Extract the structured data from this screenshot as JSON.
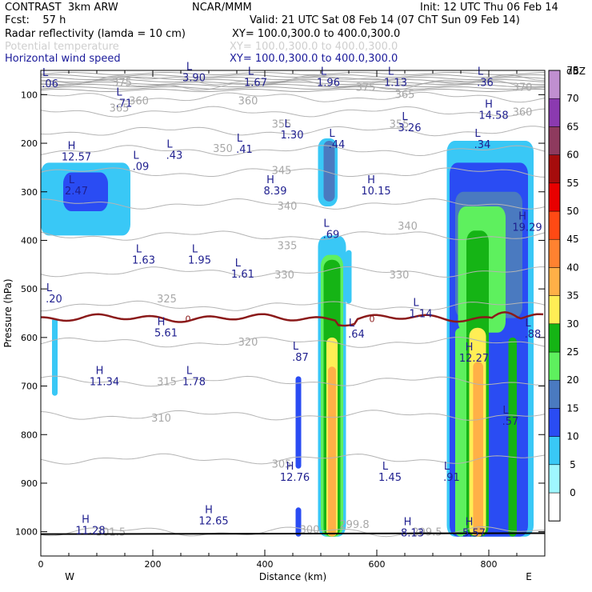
{
  "header": {
    "model": "CONTRAST  3km ARW",
    "org": "NCAR/MMM",
    "init": "Init: 12 UTC Thu 06 Feb 14",
    "fcst": "Fcst:    57 h",
    "valid": "Valid: 21 UTC Sat 08 Feb 14 (07 ChT Sun 09 Feb 14)",
    "field1": "Radar reflectivity (lamda = 10 cm)",
    "field1_xy": "XY= 100.0,300.0 to 400.0,300.0",
    "field2": "Potential temperature",
    "field2_xy": "XY= 100.0,300.0 to 400.0,300.0",
    "field3": "Horizontal wind speed",
    "field3_xy": "XY= 100.0,300.0 to 400.0,300.0"
  },
  "chart_data": {
    "type": "heatmap",
    "xlabel": "Distance (km)",
    "ylabel": "Pressure (hPa)",
    "xlim": [
      0,
      900
    ],
    "ylim": [
      1050,
      50
    ],
    "x_ticks": [
      0,
      200,
      400,
      600,
      800
    ],
    "y_ticks": [
      100,
      200,
      300,
      400,
      500,
      600,
      700,
      800,
      900,
      1000
    ],
    "x_end_labels": {
      "left": "W",
      "right": "E"
    },
    "colorbar": {
      "unit": "dBZ",
      "levels": [
        0,
        5,
        10,
        15,
        20,
        25,
        30,
        35,
        40,
        45,
        50,
        55,
        60,
        65,
        70,
        75
      ],
      "colors": [
        "#ffffff",
        "#9ff7ff",
        "#39c8f6",
        "#2a4cf3",
        "#4a7ac0",
        "#5ef05e",
        "#15b415",
        "#ffee55",
        "#ffb047",
        "#ff8230",
        "#ff4a14",
        "#e80000",
        "#a50c0c",
        "#8e3a5e",
        "#8b3ab0",
        "#c08fd0"
      ]
    },
    "theta_contours": [
      {
        "label": "375",
        "p": 70
      },
      {
        "label": "370",
        "p": 80
      },
      {
        "label": "365",
        "p": 105
      },
      {
        "label": "360",
        "p": 135
      },
      {
        "label": "355",
        "p": 175
      },
      {
        "label": "350",
        "p": 215
      },
      {
        "label": "345",
        "p": 260
      },
      {
        "label": "340",
        "p": 325
      },
      {
        "label": "335",
        "p": 390
      },
      {
        "label": "330",
        "p": 465
      },
      {
        "label": "325",
        "p": 535
      },
      {
        "label": "320",
        "p": 610
      },
      {
        "label": "315",
        "p": 690
      },
      {
        "label": "310",
        "p": 760
      },
      {
        "label": "305",
        "p": 850
      },
      {
        "label": "300",
        "p": 1000
      }
    ],
    "theta_labels": [
      {
        "text": "375",
        "x": 145,
        "p": 82
      },
      {
        "text": "360",
        "p": 120,
        "x": 175
      },
      {
        "text": "365",
        "p": 135,
        "x": 140
      },
      {
        "text": "360",
        "p": 120,
        "x": 370
      },
      {
        "text": "375",
        "p": 92,
        "x": 580
      },
      {
        "text": "365",
        "p": 107,
        "x": 650
      },
      {
        "text": "370",
        "p": 92,
        "x": 860
      },
      {
        "text": "360",
        "p": 143,
        "x": 860
      },
      {
        "text": "355",
        "p": 168,
        "x": 430
      },
      {
        "text": "355",
        "p": 168,
        "x": 640
      },
      {
        "text": "350",
        "p": 218,
        "x": 325
      },
      {
        "text": "345",
        "p": 263,
        "x": 430
      },
      {
        "text": "340",
        "p": 337,
        "x": 440
      },
      {
        "text": "340",
        "p": 378,
        "x": 655
      },
      {
        "text": "335",
        "p": 418,
        "x": 440
      },
      {
        "text": "330",
        "p": 478,
        "x": 435
      },
      {
        "text": "330",
        "p": 478,
        "x": 640
      },
      {
        "text": "325",
        "p": 528,
        "x": 225
      },
      {
        "text": "320",
        "p": 617,
        "x": 370
      },
      {
        "text": "315",
        "p": 698,
        "x": 225
      },
      {
        "text": "310",
        "p": 773,
        "x": 215
      },
      {
        "text": "305",
        "p": 868,
        "x": 430
      },
      {
        "text": "301.5",
        "p": 1008,
        "x": 125
      },
      {
        "text": "300",
        "p": 1003,
        "x": 480
      },
      {
        "text": "299.8",
        "p": 992,
        "x": 560
      },
      {
        "text": "299.5",
        "p": 1008,
        "x": 690
      }
    ],
    "freezing_level": {
      "label": "0",
      "p_mean": 560
    },
    "wind_extrema": [
      {
        "kind": "L",
        "value": ".06",
        "x": 8,
        "p": 85
      },
      {
        "kind": "L",
        "value": "3.90",
        "x": 265,
        "p": 72
      },
      {
        "kind": "L",
        "value": "1.67",
        "x": 375,
        "p": 82
      },
      {
        "kind": "L",
        "value": "1.96",
        "x": 505,
        "p": 82
      },
      {
        "kind": "L",
        "value": "1.13",
        "x": 625,
        "p": 82
      },
      {
        "kind": "L",
        "value": ".36",
        "x": 785,
        "p": 82
      },
      {
        "kind": "L",
        "value": ".71",
        "x": 140,
        "p": 125
      },
      {
        "kind": "H",
        "value": "14.58",
        "x": 800,
        "p": 150
      },
      {
        "kind": "L",
        "value": "1.30",
        "x": 440,
        "p": 190
      },
      {
        "kind": "L",
        "value": "3.26",
        "x": 650,
        "p": 175
      },
      {
        "kind": "L",
        "value": ".44",
        "x": 520,
        "p": 210
      },
      {
        "kind": "L",
        "value": ".34",
        "x": 780,
        "p": 210
      },
      {
        "kind": "H",
        "value": "12.57",
        "x": 55,
        "p": 235
      },
      {
        "kind": "L",
        "value": ".09",
        "x": 170,
        "p": 255
      },
      {
        "kind": "L",
        "value": ".43",
        "x": 230,
        "p": 232
      },
      {
        "kind": "L",
        "value": ".41",
        "x": 355,
        "p": 220
      },
      {
        "kind": "L",
        "value": "2.47",
        "x": 55,
        "p": 305
      },
      {
        "kind": "H",
        "value": "8.39",
        "x": 410,
        "p": 305
      },
      {
        "kind": "H",
        "value": "10.15",
        "x": 590,
        "p": 305
      },
      {
        "kind": "H",
        "value": "19.29",
        "x": 860,
        "p": 380
      },
      {
        "kind": "L",
        "value": ".69",
        "x": 510,
        "p": 395
      },
      {
        "kind": "L",
        "value": "1.63",
        "x": 175,
        "p": 448
      },
      {
        "kind": "L",
        "value": "1.95",
        "x": 275,
        "p": 448
      },
      {
        "kind": "L",
        "value": "1.61",
        "x": 352,
        "p": 477
      },
      {
        "kind": "L",
        "value": ".20",
        "x": 15,
        "p": 528
      },
      {
        "kind": "L",
        "value": "1.14",
        "x": 670,
        "p": 558
      },
      {
        "kind": "H",
        "value": "5.61",
        "x": 215,
        "p": 598
      },
      {
        "kind": "L",
        "value": ".64",
        "x": 555,
        "p": 600
      },
      {
        "kind": "L",
        "value": ".88",
        "x": 870,
        "p": 600
      },
      {
        "kind": "L",
        "value": ".87",
        "x": 455,
        "p": 648
      },
      {
        "kind": "H",
        "value": "12.27",
        "x": 765,
        "p": 650
      },
      {
        "kind": "H",
        "value": "11.34",
        "x": 105,
        "p": 698
      },
      {
        "kind": "L",
        "value": "1.78",
        "x": 265,
        "p": 698
      },
      {
        "kind": "L",
        "value": ".57",
        "x": 830,
        "p": 780
      },
      {
        "kind": "H",
        "value": "12.76",
        "x": 445,
        "p": 895
      },
      {
        "kind": "L",
        "value": "1.45",
        "x": 615,
        "p": 895
      },
      {
        "kind": "L",
        "value": ".91",
        "x": 725,
        "p": 895
      },
      {
        "kind": "H",
        "value": "12.65",
        "x": 300,
        "p": 985
      },
      {
        "kind": "H",
        "value": "11.28",
        "x": 80,
        "p": 1005
      },
      {
        "kind": "H",
        "value": "8.13",
        "x": 655,
        "p": 1010
      },
      {
        "kind": "H",
        "value": "5.57",
        "x": 765,
        "p": 1010
      }
    ],
    "reflectivity_cells": [
      {
        "dbz": 10,
        "x0": 0,
        "x1": 160,
        "p0": 240,
        "p1": 390
      },
      {
        "dbz": 15,
        "x0": 40,
        "x1": 120,
        "p0": 260,
        "p1": 340
      },
      {
        "dbz": 10,
        "x0": 20,
        "x1": 30,
        "p0": 560,
        "p1": 720
      },
      {
        "dbz": 10,
        "x0": 495,
        "x1": 530,
        "p0": 190,
        "p1": 330
      },
      {
        "dbz": 20,
        "x0": 505,
        "x1": 525,
        "p0": 195,
        "p1": 320
      },
      {
        "dbz": 10,
        "x0": 495,
        "x1": 545,
        "p0": 390,
        "p1": 1010
      },
      {
        "dbz": 25,
        "x0": 500,
        "x1": 540,
        "p0": 430,
        "p1": 1010
      },
      {
        "dbz": 30,
        "x0": 505,
        "x1": 535,
        "p0": 440,
        "p1": 1010
      },
      {
        "dbz": 35,
        "x0": 510,
        "x1": 530,
        "p0": 600,
        "p1": 1010
      },
      {
        "dbz": 40,
        "x0": 513,
        "x1": 527,
        "p0": 660,
        "p1": 1010
      },
      {
        "dbz": 15,
        "x0": 455,
        "x1": 465,
        "p0": 680,
        "p1": 870
      },
      {
        "dbz": 15,
        "x0": 455,
        "x1": 465,
        "p0": 950,
        "p1": 1010
      },
      {
        "dbz": 10,
        "x0": 545,
        "x1": 555,
        "p0": 420,
        "p1": 530
      },
      {
        "dbz": 10,
        "x0": 725,
        "x1": 880,
        "p0": 195,
        "p1": 1010
      },
      {
        "dbz": 15,
        "x0": 730,
        "x1": 870,
        "p0": 240,
        "p1": 1010
      },
      {
        "dbz": 20,
        "x0": 740,
        "x1": 860,
        "p0": 300,
        "p1": 560
      },
      {
        "dbz": 25,
        "x0": 745,
        "x1": 830,
        "p0": 330,
        "p1": 590
      },
      {
        "dbz": 30,
        "x0": 760,
        "x1": 800,
        "p0": 380,
        "p1": 1010
      },
      {
        "dbz": 35,
        "x0": 765,
        "x1": 795,
        "p0": 580,
        "p1": 1010
      },
      {
        "dbz": 40,
        "x0": 772,
        "x1": 790,
        "p0": 650,
        "p1": 1010
      },
      {
        "dbz": 25,
        "x0": 740,
        "x1": 760,
        "p0": 580,
        "p1": 1010
      },
      {
        "dbz": 30,
        "x0": 835,
        "x1": 850,
        "p0": 600,
        "p1": 1010
      }
    ]
  }
}
